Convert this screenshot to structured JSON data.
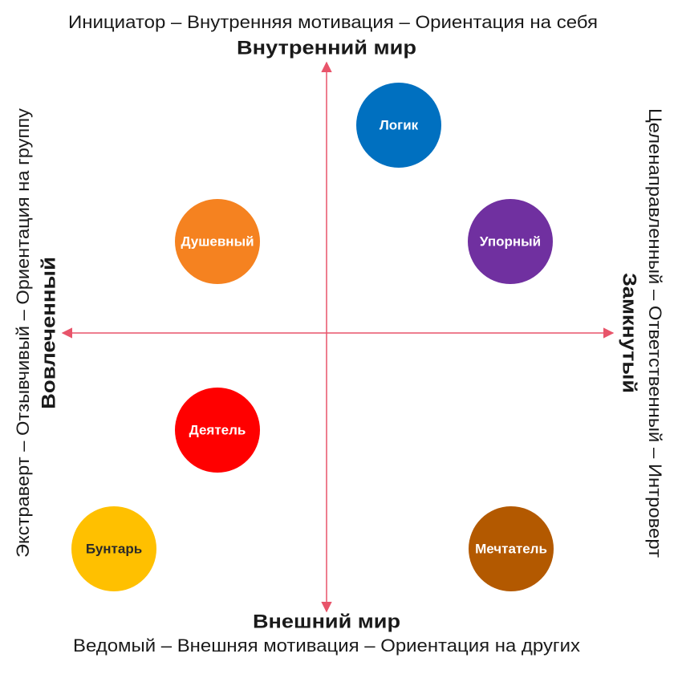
{
  "top": {
    "description": "Инициатор – Внутренняя мотивация – Ориентация на себя",
    "title": "Внутренний мир"
  },
  "bottom": {
    "title": "Внешний мир",
    "description": "Ведомый – Внешняя мотивация – Ориентация на других"
  },
  "left": {
    "description": "Экстраверт – Отзывчивый – Ориентация на группу",
    "title": "Вовлеченный"
  },
  "right": {
    "description": "Целенаправленный – Ответственный – Интроверт",
    "title": "Замкнутый"
  },
  "nodes": [
    {
      "label": "Логик"
    },
    {
      "label": "Душевный"
    },
    {
      "label": "Упорный"
    },
    {
      "label": "Деятель"
    },
    {
      "label": "Бунтарь"
    },
    {
      "label": "Мечтатель"
    }
  ]
}
